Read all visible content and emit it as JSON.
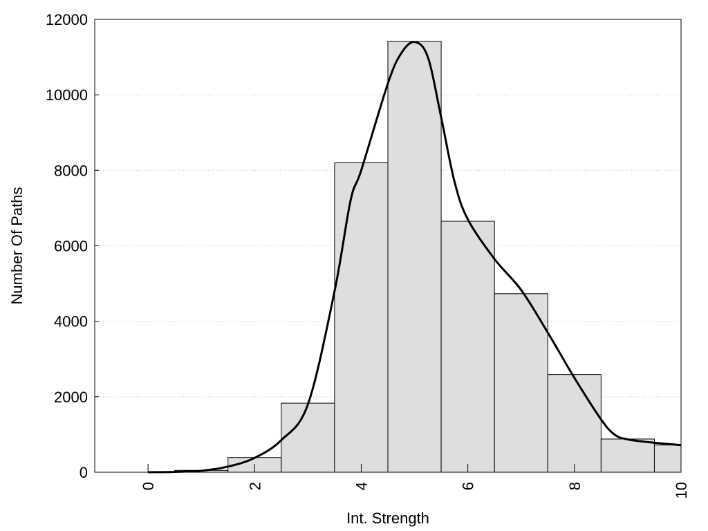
{
  "chart_data": {
    "type": "bar",
    "title": "",
    "xlabel": "Int. Strength",
    "ylabel": "Number Of Paths",
    "xlim": [
      -1,
      10
    ],
    "ylim": [
      0,
      12000
    ],
    "x_ticks": [
      "0",
      "2",
      "4",
      "6",
      "8",
      "10"
    ],
    "y_ticks": [
      "0",
      "2000",
      "4000",
      "6000",
      "8000",
      "10000",
      "12000"
    ],
    "grid": "horizontal dotted",
    "legend": "none",
    "bar_color": "#dedede",
    "bar_edge_color": "#000000",
    "bins": [
      {
        "x": 0,
        "value": 0
      },
      {
        "x": 1,
        "value": 50
      },
      {
        "x": 2,
        "value": 390
      },
      {
        "x": 3,
        "value": 1830
      },
      {
        "x": 4,
        "value": 8200
      },
      {
        "x": 5,
        "value": 11420
      },
      {
        "x": 6,
        "value": 6650
      },
      {
        "x": 7,
        "value": 4730
      },
      {
        "x": 8,
        "value": 2590
      },
      {
        "x": 9,
        "value": 880
      },
      {
        "x": 10,
        "value": 720
      }
    ],
    "density_curve": {
      "x": [
        0,
        0.5,
        1,
        1.5,
        2,
        2.5,
        3,
        3.5,
        3.8,
        4,
        4.5,
        4.75,
        5,
        5.25,
        5.5,
        5.75,
        6,
        6.5,
        7,
        7.5,
        8,
        8.5,
        8.75,
        9,
        9.5,
        10
      ],
      "y": [
        0,
        10,
        40,
        150,
        380,
        850,
        1800,
        4800,
        7200,
        8000,
        10300,
        11100,
        11400,
        11000,
        9400,
        7700,
        6700,
        5650,
        4830,
        3700,
        2500,
        1400,
        1000,
        870,
        780,
        720
      ]
    }
  }
}
